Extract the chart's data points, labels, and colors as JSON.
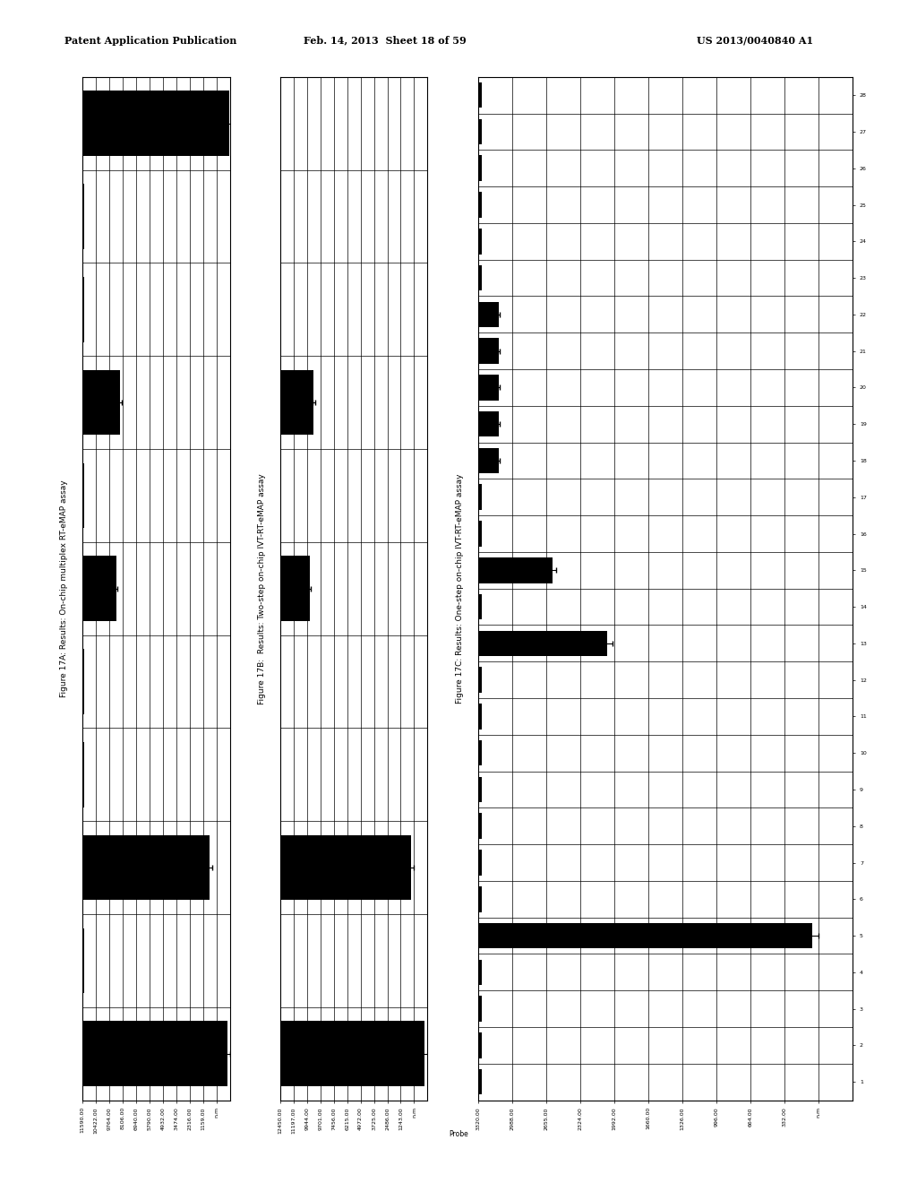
{
  "header_left": "Patent Application Publication",
  "header_mid": "Feb. 14, 2013  Sheet 18 of 59",
  "header_right": "US 2013/0040840 A1",
  "panel_A": {
    "title": "Figure 17A: Results: On-chip multiplex RT-eMAP assay",
    "xtick_labels": [
      "11590.00",
      "10422.00",
      "9764.00",
      "8106.00",
      "6940.00",
      "5790.00",
      "4932.00",
      "3474.00",
      "2316.00",
      "1159.00",
      "n.m"
    ],
    "xmax": 11,
    "num_probes": 11,
    "num_cols": 11,
    "bars": [
      {
        "probe": 11,
        "value": 10.95,
        "err": 0.15
      },
      {
        "probe": 10,
        "value": 0.1,
        "err": 0.0
      },
      {
        "probe": 9,
        "value": 0.1,
        "err": 0.0
      },
      {
        "probe": 8,
        "value": 2.8,
        "err": 0.15
      },
      {
        "probe": 7,
        "value": 0.1,
        "err": 0.0
      },
      {
        "probe": 6,
        "value": 2.5,
        "err": 0.12
      },
      {
        "probe": 5,
        "value": 0.1,
        "err": 0.0
      },
      {
        "probe": 4,
        "value": 0.1,
        "err": 0.0
      },
      {
        "probe": 3,
        "value": 9.5,
        "err": 0.2
      },
      {
        "probe": 2,
        "value": 0.1,
        "err": 0.0
      },
      {
        "probe": 1,
        "value": 10.8,
        "err": 0.2
      }
    ]
  },
  "panel_B": {
    "title": "Figure 17B:  Results: Two-step on-chip IVT-RT-eMAP assay",
    "xtick_labels": [
      "12450.00",
      "11197.00",
      "9944.00",
      "9701.00",
      "7456.00",
      "6215.00",
      "4972.00",
      "3725.00",
      "2486.00",
      "1243.00",
      "n.m"
    ],
    "xmax": 11,
    "num_probes": 11,
    "num_cols": 11,
    "bars": [
      {
        "probe": 11,
        "value": 0.1,
        "err": 0.0
      },
      {
        "probe": 10,
        "value": 0.1,
        "err": 0.0
      },
      {
        "probe": 9,
        "value": 0.1,
        "err": 0.0
      },
      {
        "probe": 8,
        "value": 2.5,
        "err": 0.12
      },
      {
        "probe": 7,
        "value": 0.1,
        "err": 0.0
      },
      {
        "probe": 6,
        "value": 2.2,
        "err": 0.1
      },
      {
        "probe": 5,
        "value": 0.1,
        "err": 0.0
      },
      {
        "probe": 4,
        "value": 0.1,
        "err": 0.0
      },
      {
        "probe": 3,
        "value": 9.8,
        "err": 0.2
      },
      {
        "probe": 2,
        "value": 0.05,
        "err": 0.0
      },
      {
        "probe": 1,
        "value": 10.8,
        "err": 0.25
      }
    ]
  },
  "panel_C": {
    "title": "Figure 17C: Results: One-step on-chip IVT-RT-eMAP assay",
    "xtick_labels": [
      "3320.00",
      "2988.00",
      "2655.00",
      "2324.00",
      "1992.00",
      "1660.00",
      "1326.00",
      "996.00",
      "664.00",
      "332.00",
      "n.m"
    ],
    "xmax": 11,
    "num_probes": 28,
    "num_cols": 11,
    "bars": [
      {
        "probe": 28,
        "value": 0.1,
        "err": 0.0
      },
      {
        "probe": 27,
        "value": 0.1,
        "err": 0.0
      },
      {
        "probe": 26,
        "value": 0.1,
        "err": 0.0
      },
      {
        "probe": 25,
        "value": 0.1,
        "err": 0.0
      },
      {
        "probe": 24,
        "value": 0.1,
        "err": 0.0
      },
      {
        "probe": 23,
        "value": 0.1,
        "err": 0.0
      },
      {
        "probe": 22,
        "value": 0.6,
        "err": 0.05
      },
      {
        "probe": 21,
        "value": 0.6,
        "err": 0.05
      },
      {
        "probe": 20,
        "value": 0.6,
        "err": 0.05
      },
      {
        "probe": 19,
        "value": 0.6,
        "err": 0.05
      },
      {
        "probe": 18,
        "value": 0.6,
        "err": 0.05
      },
      {
        "probe": 17,
        "value": 0.1,
        "err": 0.0
      },
      {
        "probe": 16,
        "value": 0.1,
        "err": 0.0
      },
      {
        "probe": 15,
        "value": 2.2,
        "err": 0.1
      },
      {
        "probe": 14,
        "value": 0.1,
        "err": 0.0
      },
      {
        "probe": 13,
        "value": 3.8,
        "err": 0.15
      },
      {
        "probe": 12,
        "value": 0.1,
        "err": 0.0
      },
      {
        "probe": 11,
        "value": 0.1,
        "err": 0.0
      },
      {
        "probe": 10,
        "value": 0.1,
        "err": 0.0
      },
      {
        "probe": 9,
        "value": 0.1,
        "err": 0.0
      },
      {
        "probe": 8,
        "value": 0.1,
        "err": 0.0
      },
      {
        "probe": 7,
        "value": 0.1,
        "err": 0.0
      },
      {
        "probe": 6,
        "value": 0.1,
        "err": 0.0
      },
      {
        "probe": 5,
        "value": 9.8,
        "err": 0.2
      },
      {
        "probe": 4,
        "value": 0.1,
        "err": 0.0
      },
      {
        "probe": 3,
        "value": 0.1,
        "err": 0.0
      },
      {
        "probe": 2,
        "value": 0.1,
        "err": 0.0
      },
      {
        "probe": 1,
        "value": 0.1,
        "err": 0.0
      }
    ]
  }
}
